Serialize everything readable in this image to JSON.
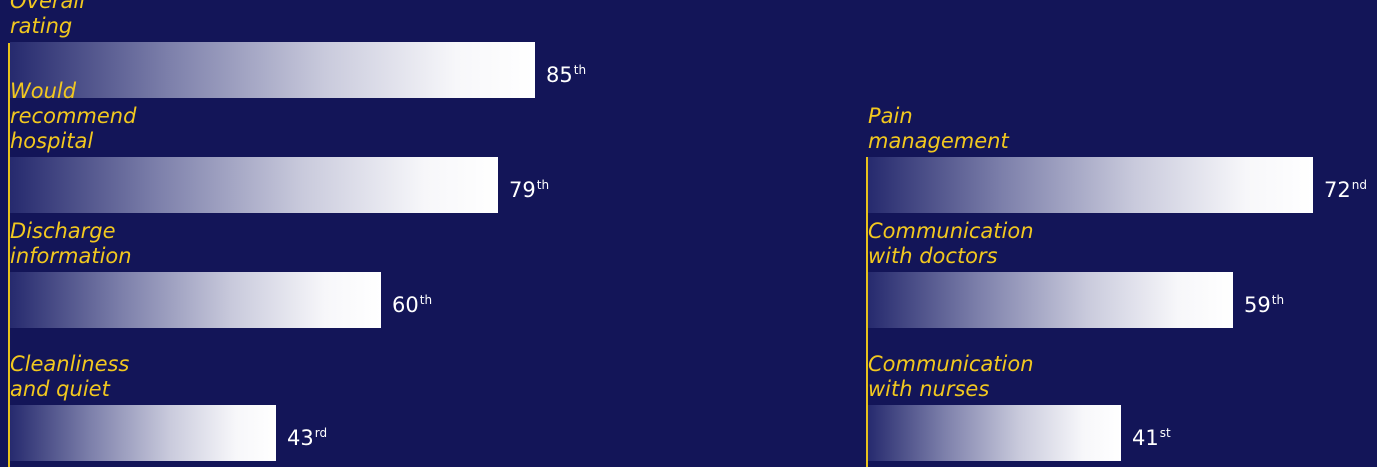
{
  "colors": {
    "background": "#131558",
    "label": "#f2c81f",
    "axis": "#e8c21c",
    "value_text": "#ffffff",
    "bar_end": "#ffffff"
  },
  "chart_data": [
    {
      "type": "bar",
      "orientation": "horizontal",
      "unit": "percentile",
      "categories": [
        "Overall rating",
        "Would recommend hospital",
        "Discharge information",
        "Cleanliness\nand quiet"
      ],
      "values": [
        85,
        79,
        60,
        43
      ],
      "value_labels": [
        {
          "num": "85",
          "suffix": "th"
        },
        {
          "num": "79",
          "suffix": "th"
        },
        {
          "num": "60",
          "suffix": "th"
        },
        {
          "num": "43",
          "suffix": "rd"
        }
      ]
    },
    {
      "type": "bar",
      "orientation": "horizontal",
      "unit": "percentile",
      "categories": [
        "Pain management",
        "Communication with doctors",
        "Communication\nwith nurses"
      ],
      "values": [
        72,
        59,
        41
      ],
      "value_labels": [
        {
          "num": "72",
          "suffix": "nd"
        },
        {
          "num": "59",
          "suffix": "th"
        },
        {
          "num": "41",
          "suffix": "st"
        }
      ]
    }
  ]
}
